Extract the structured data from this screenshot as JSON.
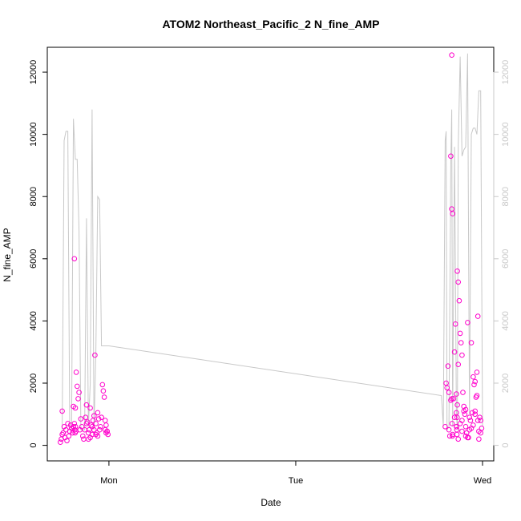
{
  "chart_data": {
    "type": "scatter",
    "title": "ATOM2 Northeast_Pacific_2 N_fine_AMP",
    "xlabel": "Date",
    "ylabel": "N_fine_AMP",
    "x_ticks": [
      "Mon",
      "Tue",
      "Wed"
    ],
    "ylim": [
      0,
      12800
    ],
    "y_ticks_left": [
      "0",
      "2000",
      "4000",
      "6000",
      "8000",
      "10000",
      "12000"
    ],
    "y_ticks_right": [
      "0",
      "2000",
      "4000",
      "6000",
      "8000",
      "10000",
      "12000"
    ],
    "grid": false,
    "legend": "none",
    "colors": {
      "points": "#ff00cc",
      "line": "#c8c8c8",
      "axis": "#000000",
      "right_axis": "#c8c8c8"
    },
    "series": [
      {
        "kind": "points",
        "x": [
          -0.26,
          -0.255,
          -0.25,
          -0.25,
          -0.245,
          -0.24,
          -0.235,
          -0.23,
          -0.225,
          -0.22,
          -0.215,
          -0.21,
          -0.205,
          -0.2,
          -0.195,
          -0.19,
          -0.185,
          -0.18,
          -0.175,
          -0.17,
          -0.165,
          -0.16,
          -0.155,
          -0.15,
          -0.145,
          -0.14,
          -0.135,
          -0.13,
          -0.125,
          -0.12,
          -0.115,
          -0.11,
          -0.105,
          -0.1,
          -0.095,
          -0.09,
          -0.085,
          -0.08,
          -0.075,
          -0.07,
          -0.065,
          -0.06,
          -0.055,
          -0.05,
          -0.045,
          -0.04,
          -0.035,
          -0.03,
          -0.025,
          -0.02,
          -0.015,
          -0.01,
          -0.005,
          -0.19,
          -0.185,
          -0.183,
          -0.181,
          -0.179,
          -0.177,
          -0.06,
          -0.02,
          -0.015,
          -0.01,
          -0.12,
          -0.11,
          -0.1,
          -0.09,
          -0.08,
          -0.07
        ],
        "y": [
          100,
          200,
          350,
          1100,
          400,
          600,
          250,
          500,
          150,
          700,
          300,
          450,
          650,
          550,
          400,
          600,
          6000,
          1200,
          2350,
          1900,
          1500,
          1700,
          500,
          850,
          600,
          300,
          200,
          500,
          900,
          1300,
          750,
          400,
          500,
          1200,
          650,
          350,
          800,
          950,
          2900,
          700,
          400,
          1050,
          850,
          500,
          600,
          900,
          1950,
          1750,
          1550,
          800,
          650,
          450,
          350,
          1250,
          700,
          500,
          400,
          600,
          450,
          300,
          500,
          400,
          450,
          700,
          200,
          250,
          600,
          500,
          350
        ],
        "x2": [
          1.8,
          1.805,
          1.81,
          1.815,
          1.82,
          1.825,
          1.83,
          1.835,
          1.84,
          1.845,
          1.85,
          1.855,
          1.86,
          1.865,
          1.87,
          1.875,
          1.88,
          1.885,
          1.89,
          1.895,
          1.9,
          1.905,
          1.91,
          1.915,
          1.92,
          1.925,
          1.93,
          1.935,
          1.94,
          1.945,
          1.95,
          1.955,
          1.96,
          1.965,
          1.97,
          1.975,
          1.98,
          1.985,
          1.99,
          1.995,
          1.82,
          1.83,
          1.84,
          1.85,
          1.86,
          1.87,
          1.88,
          1.89,
          1.9,
          1.91,
          1.92,
          1.93,
          1.94,
          1.95,
          1.96,
          1.97,
          1.98,
          1.99,
          1.835,
          1.836,
          1.837,
          1.838,
          1.86,
          1.861,
          1.862,
          1.863,
          1.864,
          1.865,
          1.87,
          1.89,
          1.91,
          1.96,
          1.975
        ],
        "y2": [
          600,
          2000,
          1850,
          2550,
          500,
          300,
          9300,
          7600,
          7450,
          1500,
          3000,
          3900,
          1650,
          5600,
          5250,
          4650,
          3600,
          3300,
          2900,
          1700,
          1250,
          1000,
          600,
          400,
          3950,
          250,
          500,
          800,
          3300,
          1050,
          2200,
          1950,
          2050,
          1550,
          2350,
          800,
          200,
          900,
          400,
          550,
          1700,
          1450,
          350,
          900,
          600,
          200,
          700,
          450,
          1100,
          300,
          250,
          900,
          550,
          650,
          1100,
          1600,
          450,
          800,
          12550,
          1500,
          700,
          300,
          1050,
          600,
          500,
          350,
          900,
          1300,
          2600,
          800,
          1150,
          1000,
          4150
        ]
      },
      {
        "kind": "line",
        "x": [
          -0.25,
          -0.24,
          -0.23,
          -0.22,
          -0.21,
          -0.2,
          -0.19,
          -0.18,
          -0.17,
          -0.16,
          -0.15,
          -0.14,
          -0.13,
          -0.12,
          -0.11,
          -0.1,
          -0.09,
          -0.08,
          -0.07,
          -0.06,
          -0.05,
          -0.04,
          -0.03,
          -0.02,
          -0.01,
          0.0,
          1.78,
          1.79,
          1.8,
          1.805,
          1.81,
          1.82,
          1.83,
          1.835,
          1.84,
          1.85,
          1.86,
          1.865,
          1.87,
          1.88,
          1.89,
          1.9,
          1.91,
          1.92,
          1.93,
          1.94,
          1.95,
          1.96,
          1.97,
          1.98,
          1.99,
          2.0
        ],
        "y": [
          500,
          9800,
          10100,
          10100,
          500,
          500,
          10500,
          9200,
          9200,
          6900,
          500,
          500,
          500,
          7300,
          600,
          2000,
          10800,
          500,
          3000,
          8000,
          7900,
          3200,
          3200,
          3200,
          3200,
          3200,
          1600,
          600,
          9800,
          10100,
          500,
          600,
          9000,
          10800,
          600,
          9600,
          1000,
          500,
          9600,
          12500,
          9300,
          9500,
          9600,
          12600,
          1000,
          10000,
          10200,
          10200,
          10000,
          11400,
          11400,
          600
        ],
        "note_unused": ""
      }
    ]
  }
}
